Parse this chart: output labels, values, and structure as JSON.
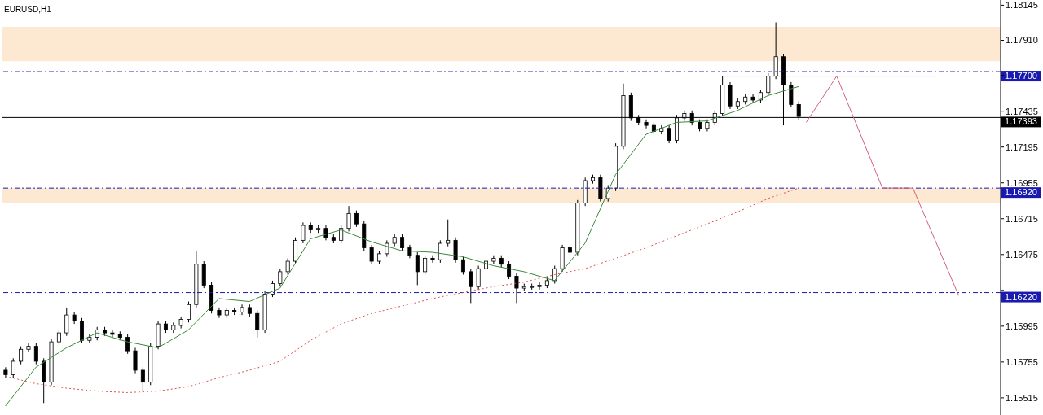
{
  "chart_data": {
    "type": "candlestick",
    "title": "EURUSD,H1",
    "categories": [
      null,
      null,
      null,
      null,
      null,
      null,
      null,
      null,
      null,
      null,
      null,
      null,
      null,
      null,
      null,
      null,
      null,
      null,
      null,
      null,
      null,
      null,
      null,
      null,
      null,
      null,
      null,
      null,
      null,
      null,
      null,
      null,
      null,
      null,
      null,
      null,
      null,
      null,
      null,
      null,
      null,
      null,
      null,
      null,
      null,
      null,
      null,
      null,
      null,
      null,
      null,
      null,
      null,
      null,
      null,
      null,
      null,
      null,
      null,
      null,
      null,
      null,
      null,
      null,
      null,
      null,
      null,
      null,
      null,
      null,
      null,
      null,
      null,
      null,
      null,
      null,
      null,
      null,
      null,
      null,
      null,
      null,
      null,
      null,
      null,
      null,
      null,
      null,
      null,
      null,
      null,
      null,
      null,
      null,
      null,
      null,
      null,
      null,
      null,
      null,
      null,
      null,
      null,
      null,
      null,
      null,
      null,
      null,
      null,
      null,
      null,
      null,
      null,
      null,
      null,
      null,
      null,
      null,
      null,
      null,
      null,
      null,
      null,
      null,
      null,
      null,
      null,
      null,
      null,
      null,
      null
    ],
    "color": "#000000",
    "ohlc": [
      [
        1.157,
        1.1572,
        1.1565,
        1.1567
      ],
      [
        1.1567,
        1.1578,
        1.1565,
        1.1576
      ],
      [
        1.1576,
        1.1586,
        1.1574,
        1.1584
      ],
      [
        1.1584,
        1.1588,
        1.1582,
        1.1586
      ],
      [
        1.1586,
        1.1588,
        1.1574,
        1.1576
      ],
      [
        1.1576,
        1.1578,
        1.1548,
        1.1562
      ],
      [
        1.1562,
        1.1591,
        1.156,
        1.1589
      ],
      [
        1.1589,
        1.1597,
        1.1587,
        1.1595
      ],
      [
        1.1595,
        1.1612,
        1.1593,
        1.1607
      ],
      [
        1.1607,
        1.1609,
        1.1601,
        1.1603
      ],
      [
        1.1603,
        1.1605,
        1.1588,
        1.159
      ],
      [
        1.159,
        1.1594,
        1.1588,
        1.1592
      ],
      [
        1.1592,
        1.1599,
        1.159,
        1.1597
      ],
      [
        1.1597,
        1.1599,
        1.1593,
        1.1595
      ],
      [
        1.1595,
        1.1597,
        1.1592,
        1.1594
      ],
      [
        1.1594,
        1.1596,
        1.159,
        1.1592
      ],
      [
        1.1592,
        1.1594,
        1.1581,
        1.1583
      ],
      [
        1.1583,
        1.1585,
        1.1568,
        1.157
      ],
      [
        1.157,
        1.1572,
        1.1555,
        1.1562
      ],
      [
        1.1562,
        1.1588,
        1.156,
        1.1586
      ],
      [
        1.1586,
        1.1603,
        1.1584,
        1.1601
      ],
      [
        1.1601,
        1.1603,
        1.1595,
        1.1597
      ],
      [
        1.1597,
        1.1602,
        1.1595,
        1.16
      ],
      [
        1.16,
        1.1606,
        1.1598,
        1.1604
      ],
      [
        1.1604,
        1.1616,
        1.1602,
        1.1614
      ],
      [
        1.1614,
        1.165,
        1.1612,
        1.1641
      ],
      [
        1.1641,
        1.1643,
        1.1625,
        1.1627
      ],
      [
        1.1627,
        1.1629,
        1.1608,
        1.161
      ],
      [
        1.161,
        1.1612,
        1.1605,
        1.1607
      ],
      [
        1.1607,
        1.1612,
        1.1605,
        1.161
      ],
      [
        1.161,
        1.1612,
        1.1607,
        1.1609
      ],
      [
        1.1609,
        1.1614,
        1.1607,
        1.1612
      ],
      [
        1.1612,
        1.1614,
        1.1606,
        1.1608
      ],
      [
        1.1608,
        1.161,
        1.1592,
        1.1597
      ],
      [
        1.1597,
        1.1623,
        1.1595,
        1.1621
      ],
      [
        1.1621,
        1.163,
        1.1619,
        1.1628
      ],
      [
        1.1628,
        1.1638,
        1.1626,
        1.1636
      ],
      [
        1.1636,
        1.1645,
        1.1634,
        1.1643
      ],
      [
        1.1643,
        1.1659,
        1.1641,
        1.1657
      ],
      [
        1.1657,
        1.1669,
        1.1655,
        1.1667
      ],
      [
        1.1667,
        1.1669,
        1.1662,
        1.1664
      ],
      [
        1.1664,
        1.1667,
        1.1662,
        1.1665
      ],
      [
        1.1665,
        1.1667,
        1.1657,
        1.1659
      ],
      [
        1.1659,
        1.1661,
        1.1655,
        1.1657
      ],
      [
        1.1657,
        1.1667,
        1.1655,
        1.1665
      ],
      [
        1.1665,
        1.168,
        1.1663,
        1.1675
      ],
      [
        1.1675,
        1.1677,
        1.1666,
        1.1668
      ],
      [
        1.1668,
        1.167,
        1.165,
        1.1652
      ],
      [
        1.1652,
        1.1654,
        1.1641,
        1.1643
      ],
      [
        1.1643,
        1.165,
        1.1641,
        1.1648
      ],
      [
        1.1648,
        1.1657,
        1.1646,
        1.1655
      ],
      [
        1.1655,
        1.1661,
        1.1653,
        1.1659
      ],
      [
        1.1659,
        1.1661,
        1.165,
        1.1652
      ],
      [
        1.1652,
        1.1654,
        1.1645,
        1.1647
      ],
      [
        1.1647,
        1.1649,
        1.1627,
        1.1636
      ],
      [
        1.1636,
        1.1647,
        1.1634,
        1.1645
      ],
      [
        1.1645,
        1.1647,
        1.1642,
        1.1644
      ],
      [
        1.1644,
        1.1657,
        1.1642,
        1.1655
      ],
      [
        1.1655,
        1.1671,
        1.1653,
        1.1657
      ],
      [
        1.1657,
        1.1659,
        1.1642,
        1.1644
      ],
      [
        1.1644,
        1.1646,
        1.1634,
        1.1636
      ],
      [
        1.1636,
        1.1638,
        1.1615,
        1.1626
      ],
      [
        1.1626,
        1.164,
        1.1624,
        1.1638
      ],
      [
        1.1638,
        1.1645,
        1.1636,
        1.1643
      ],
      [
        1.1643,
        1.1647,
        1.1641,
        1.1645
      ],
      [
        1.1645,
        1.1647,
        1.1639,
        1.1641
      ],
      [
        1.1641,
        1.1643,
        1.1631,
        1.1633
      ],
      [
        1.1633,
        1.1635,
        1.1615,
        1.1625
      ],
      [
        1.1625,
        1.1628,
        1.1623,
        1.1626
      ],
      [
        1.1626,
        1.1628,
        1.1624,
        1.1626
      ],
      [
        1.1626,
        1.1629,
        1.1624,
        1.1627
      ],
      [
        1.1627,
        1.1632,
        1.1625,
        1.163
      ],
      [
        1.163,
        1.164,
        1.1628,
        1.1638
      ],
      [
        1.1638,
        1.1654,
        1.1636,
        1.1652
      ],
      [
        1.1652,
        1.1654,
        1.1647,
        1.1649
      ],
      [
        1.1649,
        1.1684,
        1.1647,
        1.1682
      ],
      [
        1.1682,
        1.1699,
        1.168,
        1.1697
      ],
      [
        1.1697,
        1.1701,
        1.1695,
        1.1699
      ],
      [
        1.1699,
        1.1701,
        1.1683,
        1.1685
      ],
      [
        1.1685,
        1.1694,
        1.1683,
        1.1692
      ],
      [
        1.1692,
        1.1722,
        1.169,
        1.172
      ],
      [
        1.172,
        1.1762,
        1.1718,
        1.1754
      ],
      [
        1.1754,
        1.1756,
        1.1737,
        1.1739
      ],
      [
        1.1739,
        1.1741,
        1.1734,
        1.1736
      ],
      [
        1.1736,
        1.1738,
        1.1732,
        1.1734
      ],
      [
        1.1734,
        1.1736,
        1.1728,
        1.173
      ],
      [
        1.173,
        1.1734,
        1.1728,
        1.1732
      ],
      [
        1.1732,
        1.1734,
        1.1722,
        1.1724
      ],
      [
        1.1724,
        1.1741,
        1.1722,
        1.1739
      ],
      [
        1.1739,
        1.1744,
        1.1737,
        1.1742
      ],
      [
        1.1742,
        1.1744,
        1.1734,
        1.1736
      ],
      [
        1.1736,
        1.1738,
        1.173,
        1.1732
      ],
      [
        1.1732,
        1.1738,
        1.173,
        1.1736
      ],
      [
        1.1736,
        1.1744,
        1.1734,
        1.1742
      ],
      [
        1.1742,
        1.1767,
        1.174,
        1.1761
      ],
      [
        1.1761,
        1.1763,
        1.1745,
        1.1747
      ],
      [
        1.1747,
        1.1752,
        1.1745,
        1.175
      ],
      [
        1.175,
        1.1755,
        1.1748,
        1.1753
      ],
      [
        1.1753,
        1.1755,
        1.1749,
        1.1751
      ],
      [
        1.1751,
        1.1758,
        1.1749,
        1.1756
      ],
      [
        1.1756,
        1.1769,
        1.1754,
        1.1767
      ],
      [
        1.1767,
        1.1803,
        1.1765,
        1.178
      ],
      [
        1.178,
        1.1782,
        1.1734,
        1.1761
      ],
      [
        1.1761,
        1.1763,
        1.1746,
        1.1748
      ],
      [
        1.1748,
        1.175,
        1.1738,
        1.174
      ],
      null,
      null,
      null,
      null,
      null,
      null,
      null,
      null,
      null,
      null,
      null,
      null,
      null,
      null,
      null,
      null,
      null,
      null,
      null,
      null,
      null,
      null,
      null,
      null,
      null,
      null
    ],
    "series": [
      {
        "type": "line",
        "color": "#3a8a3a",
        "values": [
          1.1546,
          null,
          null,
          null,
          1.1572,
          null,
          null,
          null,
          1.1585,
          null,
          null,
          null,
          1.1595,
          null,
          null,
          null,
          1.1589,
          null,
          null,
          null,
          1.1585,
          null,
          null,
          null,
          1.1597,
          null,
          null,
          null,
          1.1618,
          null,
          null,
          null,
          1.1616,
          null,
          null,
          null,
          1.1625,
          null,
          null,
          null,
          1.1658,
          null,
          null,
          null,
          1.1664,
          null,
          null,
          null,
          1.1656,
          null,
          null,
          null,
          1.165,
          null,
          null,
          null,
          1.1649,
          null,
          null,
          null,
          1.1646,
          null,
          null,
          null,
          1.164,
          null,
          null,
          null,
          1.1636,
          null,
          null,
          null,
          1.163,
          null,
          null,
          null,
          1.1655,
          null,
          null,
          null,
          1.1701,
          null,
          null,
          null,
          1.1728,
          null,
          null,
          null,
          1.1736,
          null,
          null,
          null,
          1.1737,
          null,
          null,
          null,
          1.1744,
          null,
          null,
          null,
          1.1754,
          null,
          null,
          null,
          1.176,
          null,
          null,
          null,
          null,
          null,
          null,
          null,
          null,
          null,
          null,
          null,
          null,
          null,
          null,
          null,
          null,
          null,
          null,
          null,
          null,
          null,
          null,
          null,
          null,
          null,
          null
        ]
      },
      {
        "type": "line",
        "color": "#e05050",
        "line_style": "dotted",
        "values": [
          1.1566,
          null,
          null,
          null,
          1.1561,
          null,
          null,
          null,
          1.1558,
          null,
          null,
          null,
          1.1556,
          null,
          null,
          null,
          1.1555,
          null,
          null,
          null,
          1.1556,
          null,
          null,
          null,
          1.1559,
          null,
          null,
          null,
          1.1565,
          null,
          null,
          null,
          1.157,
          null,
          null,
          null,
          1.1576,
          null,
          null,
          null,
          1.159,
          null,
          null,
          null,
          1.1601,
          null,
          null,
          null,
          1.1608,
          null,
          null,
          null,
          1.1613,
          null,
          null,
          null,
          1.1618,
          null,
          null,
          null,
          1.1622,
          null,
          null,
          null,
          1.1626,
          null,
          null,
          null,
          1.1629,
          null,
          null,
          null,
          1.1634,
          null,
          null,
          null,
          1.1638,
          null,
          null,
          null,
          1.1645,
          null,
          null,
          null,
          1.1652,
          null,
          null,
          null,
          1.166,
          null,
          null,
          null,
          1.1668,
          null,
          null,
          null,
          1.1676,
          null,
          null,
          null,
          1.1685,
          null,
          null,
          null,
          1.1692,
          null,
          null,
          null,
          null,
          null,
          null,
          null,
          null,
          null,
          null,
          null,
          null,
          null,
          null,
          null,
          null,
          null,
          null,
          null,
          null,
          null,
          null,
          null,
          null,
          null,
          null
        ]
      },
      {
        "type": "line",
        "color": "#c03050",
        "values": [
          null,
          null,
          null,
          null,
          null,
          null,
          null,
          null,
          null,
          null,
          null,
          null,
          null,
          null,
          null,
          null,
          null,
          null,
          null,
          null,
          null,
          null,
          null,
          null,
          null,
          null,
          null,
          null,
          null,
          null,
          null,
          null,
          null,
          null,
          null,
          null,
          null,
          null,
          null,
          null,
          null,
          null,
          null,
          null,
          null,
          null,
          null,
          null,
          null,
          null,
          null,
          null,
          null,
          null,
          null,
          null,
          null,
          null,
          null,
          null,
          null,
          null,
          null,
          null,
          null,
          null,
          null,
          null,
          null,
          null,
          null,
          null,
          null,
          null,
          null,
          null,
          null,
          null,
          null,
          null,
          null,
          null,
          null,
          null,
          null,
          null,
          null,
          null,
          null,
          null,
          null,
          null,
          null,
          null,
          1.1767,
          null,
          null,
          null,
          null,
          null,
          null,
          null,
          null,
          null,
          null,
          null,
          null,
          null,
          null,
          null,
          null,
          null,
          null,
          null,
          null,
          null,
          null,
          null,
          null,
          null,
          null,
          null,
          1.1767,
          null,
          null,
          null,
          null,
          null,
          null,
          null,
          null
        ]
      },
      {
        "type": "line",
        "color": "#d06080",
        "values": [
          null,
          null,
          null,
          null,
          null,
          null,
          null,
          null,
          null,
          null,
          null,
          null,
          null,
          null,
          null,
          null,
          null,
          null,
          null,
          null,
          null,
          null,
          null,
          null,
          null,
          null,
          null,
          null,
          null,
          null,
          null,
          null,
          null,
          null,
          null,
          null,
          null,
          null,
          null,
          null,
          null,
          null,
          null,
          null,
          null,
          null,
          null,
          null,
          null,
          null,
          null,
          null,
          null,
          null,
          null,
          null,
          null,
          null,
          null,
          null,
          null,
          null,
          null,
          null,
          null,
          null,
          null,
          null,
          null,
          null,
          null,
          null,
          null,
          null,
          null,
          null,
          null,
          null,
          null,
          null,
          null,
          null,
          null,
          null,
          null,
          null,
          null,
          null,
          null,
          null,
          null,
          null,
          null,
          null,
          null,
          null,
          null,
          null,
          null,
          null,
          null,
          null,
          null,
          null,
          null,
          1.1736,
          null,
          null,
          null,
          1.1767,
          null,
          null,
          null,
          null,
          null,
          1.1692,
          null,
          null,
          null,
          1.1692,
          null,
          null,
          null,
          null,
          null,
          1.162,
          null,
          null,
          null,
          null,
          null
        ]
      }
    ],
    "marker": "none",
    "ylim": [
      1.154,
      1.1818
    ],
    "yticks": [
      1.15515,
      1.15755,
      1.15995,
      {
        "value": 1.16235,
        "label": null
      },
      1.16475,
      1.16715,
      1.16955,
      1.17195,
      1.17435,
      {
        "value": 1.17675,
        "label": null
      },
      {
        "value": 1.1791,
        "label": "1.17910"
      },
      1.18145
    ],
    "tick_labels": "y",
    "ref_lines": [
      {
        "axis": "y",
        "value": 1.177,
        "label": "1.17700",
        "color": "#1a1ab0",
        "line_style": "dashed"
      },
      {
        "axis": "y",
        "value": 1.17393,
        "label": "1.17393",
        "color": "#000000",
        "line_style": "solid"
      },
      {
        "axis": "y",
        "value": 1.1692,
        "label": "1.16920",
        "color": "#1a1ab0",
        "line_style": "dashed"
      },
      {
        "axis": "y",
        "value": 1.1622,
        "label": "1.16220",
        "color": "#1a1ab0",
        "line_style": "dashed"
      }
    ],
    "bands": [
      {
        "axis": "y",
        "from": 1.1777,
        "to": 1.18,
        "color": "#fcd9b4"
      },
      {
        "axis": "y",
        "from": 1.1682,
        "to": 1.1692,
        "color": "#fcd9b4"
      }
    ]
  }
}
